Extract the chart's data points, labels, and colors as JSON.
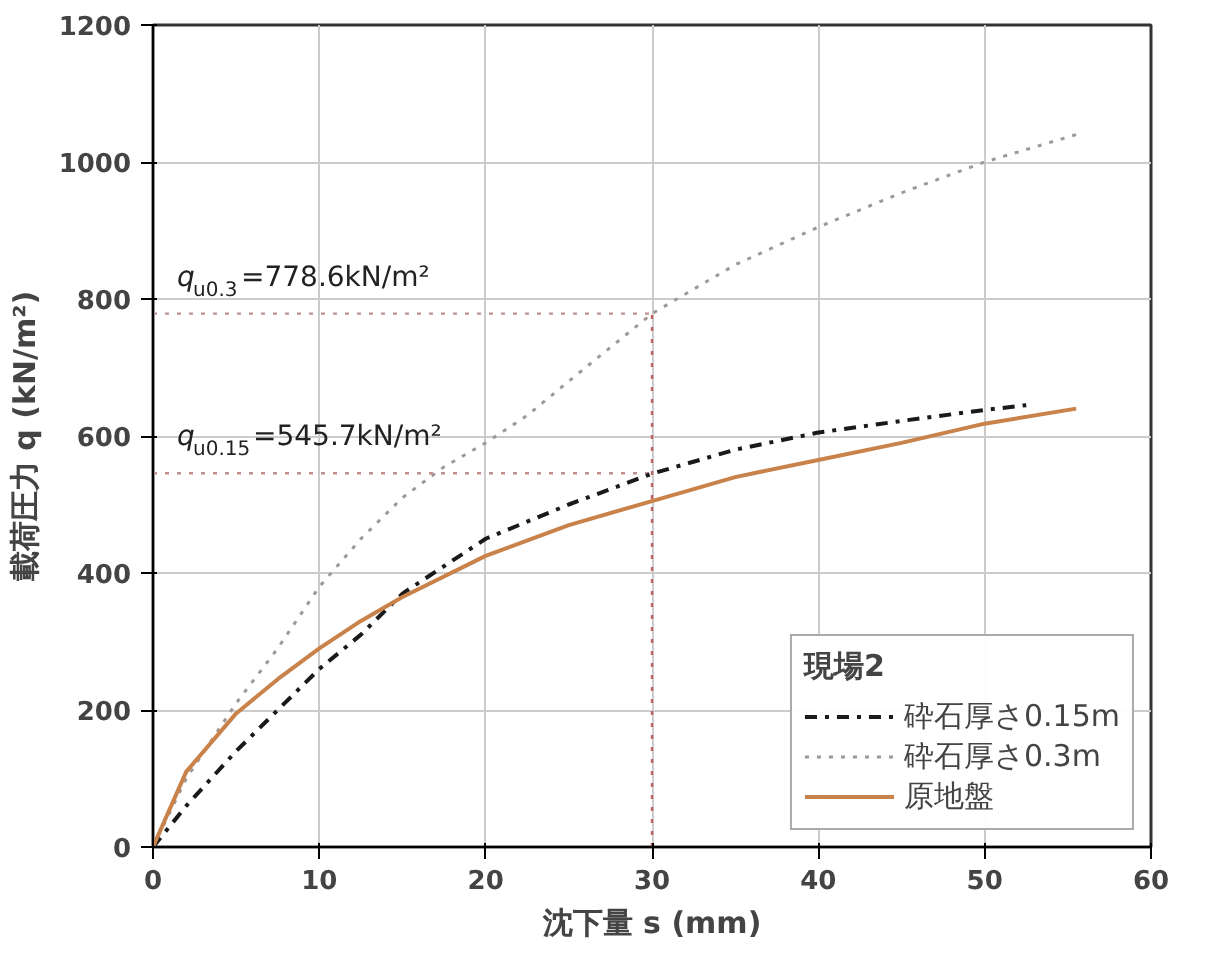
{
  "chart_data": {
    "type": "line",
    "xlabel": "沈下量 s (mm)",
    "ylabel": "載荷圧力 q (kN/m²)",
    "legend_title": "現場2",
    "xlim": [
      0,
      60
    ],
    "ylim": [
      0,
      1200
    ],
    "xticks": [
      0,
      10,
      20,
      30,
      40,
      50,
      60
    ],
    "yticks": [
      0,
      200,
      400,
      600,
      800,
      1000,
      1200
    ],
    "grid": true,
    "legend": "bottom right",
    "series": [
      {
        "name": "砕石厚さ0.15m",
        "color": "#1a1a1a",
        "line_style": "dashdot",
        "x": [
          0,
          2,
          5,
          7.5,
          10,
          12.5,
          15,
          17.5,
          20,
          25,
          30,
          35,
          40,
          45,
          50,
          52.5
        ],
        "values": [
          0,
          60,
          140,
          200,
          260,
          310,
          370,
          410,
          450,
          500,
          545,
          580,
          605,
          622,
          638,
          645
        ]
      },
      {
        "name": "砕石厚さ0.3m",
        "color": "#a09898",
        "line_style": "dotted",
        "x": [
          0,
          2,
          5,
          7.5,
          10,
          12.5,
          15,
          17.5,
          20,
          22.5,
          25,
          30,
          35,
          40,
          45,
          50,
          55.5
        ],
        "values": [
          0,
          100,
          210,
          290,
          380,
          450,
          510,
          555,
          590,
          630,
          680,
          778.6,
          850,
          905,
          955,
          1000,
          1040
        ]
      },
      {
        "name": "原地盤",
        "color": "#c8824a",
        "line_style": "solid",
        "x": [
          0,
          2,
          5,
          7.5,
          10,
          12.5,
          15,
          20,
          25,
          30,
          35,
          40,
          45,
          50,
          55.5
        ],
        "values": [
          0,
          110,
          195,
          245,
          290,
          330,
          365,
          425,
          470,
          505,
          540,
          565,
          590,
          618,
          640
        ]
      }
    ],
    "ref_lines": [
      {
        "axis": "y",
        "value": 778.6,
        "label": "q$_{u0.3}$=778.6kN/m²",
        "color": "#c09090",
        "line_style": "dotted"
      },
      {
        "axis": "y",
        "value": 545.7,
        "label": "q$_{u0.15}$=545.7kN/m²",
        "color": "#c09090",
        "line_style": "dotted"
      },
      {
        "axis": "x",
        "value": 30,
        "color": "#c06060",
        "line_style": "dotted"
      }
    ]
  }
}
